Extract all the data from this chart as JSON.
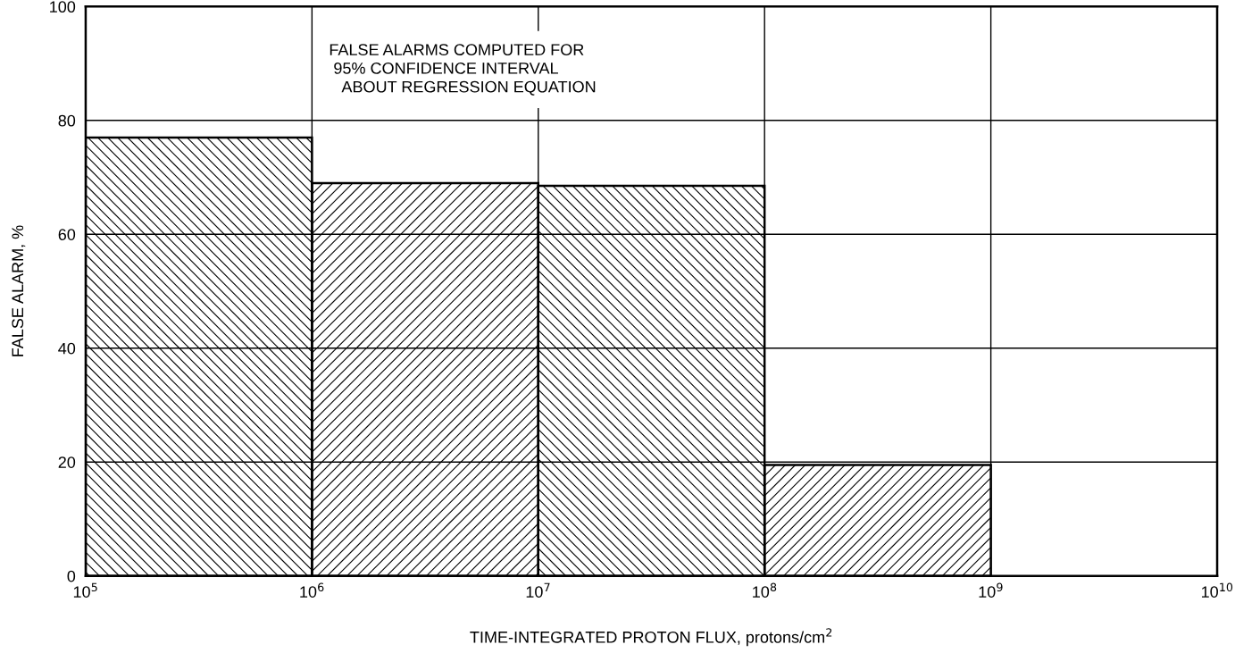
{
  "chart_data": {
    "type": "histogram",
    "bins": [
      100000,
      1000000,
      10000000,
      100000000,
      1000000000
    ],
    "values": [
      77,
      69,
      68.5,
      19.5
    ],
    "color": "#000000",
    "xlabel": "TIME-INTEGRATED PROTON FLUX, protons/cm$^{2}$",
    "ylabel": "FALSE ALARM, %",
    "annotations": [
      "FALSE ALARMS COMPUTED FOR\n 95% CONFIDENCE INTERVAL\n   ABOUT REGRESSION EQUATION"
    ],
    "log": "x",
    "xlim": [
      100000,
      10000000000
    ],
    "xticks": [
      {
        "value": 100000,
        "label": "10$^{5}$"
      },
      {
        "value": 1000000,
        "label": "10$^{6}$"
      },
      {
        "value": 10000000,
        "label": "10$^{7}$"
      },
      {
        "value": 100000000,
        "label": "10$^{8}$"
      },
      {
        "value": 1000000000,
        "label": "10$^{9}$"
      },
      {
        "value": 10000000000,
        "label": "10$^{10}$"
      }
    ],
    "ylim": [
      0,
      100
    ],
    "yticks": [
      0,
      20,
      40,
      60,
      80,
      100
    ],
    "grid": true
  }
}
